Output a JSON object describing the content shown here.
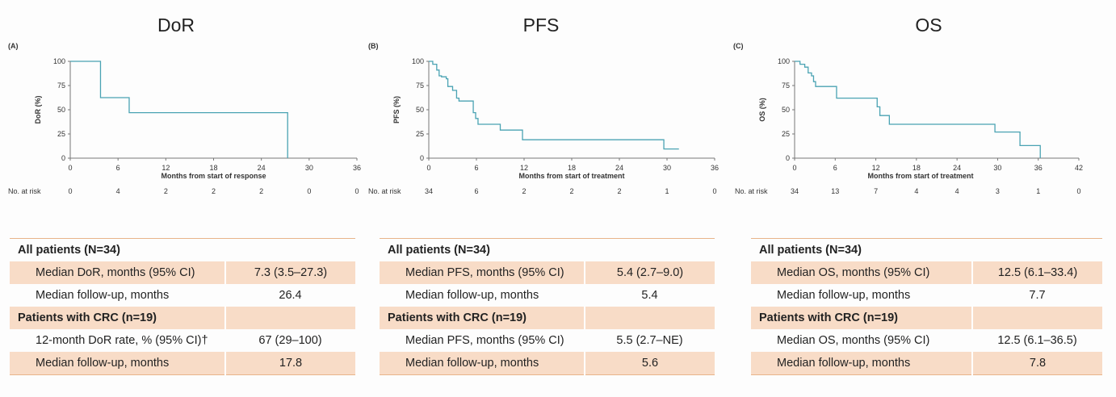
{
  "colors": {
    "curve": "#4aa3b3",
    "axis": "#777",
    "table_shade": "#f8dcc7",
    "table_rule": "#e8b48a"
  },
  "chart_data": [
    {
      "type": "line",
      "panel": "(A)",
      "title": "DoR",
      "xlabel": "Months from start of response",
      "ylabel": "DoR (%)",
      "xlim": [
        0,
        36
      ],
      "ylim": [
        0,
        100
      ],
      "xticks": [
        0,
        6,
        12,
        18,
        24,
        30,
        36
      ],
      "yticks": [
        0,
        25,
        50,
        75,
        100
      ],
      "risk_label": "No. at risk",
      "at_risk": [
        0,
        4,
        2,
        2,
        2,
        0,
        0
      ],
      "series": [
        {
          "x": [
            0,
            3.5,
            3.8,
            7.3,
            7.4,
            27.3,
            27.3
          ],
          "y": [
            100,
            100,
            62.5,
            62.5,
            47,
            47,
            0
          ]
        }
      ]
    },
    {
      "type": "line",
      "panel": "(B)",
      "title": "PFS",
      "xlabel": "Months from start of treatment",
      "ylabel": "PFS (%)",
      "xlim": [
        0,
        36
      ],
      "ylim": [
        0,
        100
      ],
      "xticks": [
        0,
        6,
        12,
        18,
        24,
        30,
        36
      ],
      "yticks": [
        0,
        25,
        50,
        75,
        100
      ],
      "risk_label": "No. at risk",
      "at_risk": [
        34,
        6,
        2,
        2,
        2,
        1,
        0
      ],
      "series": [
        {
          "x": [
            0,
            0.5,
            1,
            1.3,
            1.6,
            2.2,
            2.4,
            3,
            3.5,
            3.8,
            5.3,
            5.6,
            5.9,
            6.2,
            8.9,
            9,
            11.6,
            11.8,
            29.5,
            29.6,
            31.5
          ],
          "y": [
            100,
            97,
            91,
            85,
            84,
            82,
            74,
            70,
            62,
            59,
            59,
            47,
            41,
            35,
            35,
            29,
            29,
            19,
            19,
            9.5,
            9.5
          ]
        }
      ]
    },
    {
      "type": "line",
      "panel": "(C)",
      "title": "OS",
      "xlabel": "Months from start of treatment",
      "ylabel": "OS (%)",
      "xlim": [
        0,
        42
      ],
      "ylim": [
        0,
        100
      ],
      "xticks": [
        0,
        6,
        12,
        18,
        24,
        30,
        36,
        42
      ],
      "yticks": [
        0,
        25,
        50,
        75,
        100
      ],
      "risk_label": "No. at risk",
      "at_risk": [
        34,
        13,
        7,
        4,
        4,
        3,
        1,
        0
      ],
      "series": [
        {
          "x": [
            0,
            0.8,
            1.5,
            2,
            2.5,
            2.8,
            3.1,
            5.8,
            6.2,
            12,
            12.2,
            12.6,
            13.9,
            14,
            29.5,
            29.6,
            33.2,
            33.3,
            36.2,
            36.3
          ],
          "y": [
            100,
            97,
            94,
            88,
            85,
            79,
            74,
            74,
            62,
            62,
            53,
            44,
            44,
            35,
            35,
            27,
            27,
            13,
            13,
            0
          ]
        }
      ]
    }
  ],
  "tables": [
    {
      "rows": [
        {
          "type": "hdr",
          "label": "All patients (N=34)",
          "value": ""
        },
        {
          "type": "row",
          "label": "Median DoR, months (95% CI)",
          "value": "7.3 (3.5–27.3)",
          "shade": true
        },
        {
          "type": "row",
          "label": "Median follow-up, months",
          "value": "26.4",
          "shade": false
        },
        {
          "type": "hdr",
          "label": "Patients with CRC (n=19)",
          "value": "",
          "shade": true
        },
        {
          "type": "row",
          "label": "12-month DoR rate, % (95% CI)†",
          "value": "67 (29–100)",
          "shade": false
        },
        {
          "type": "row",
          "label": "Median follow-up, months",
          "value": "17.8",
          "shade": true
        }
      ]
    },
    {
      "rows": [
        {
          "type": "hdr",
          "label": "All patients (N=34)",
          "value": ""
        },
        {
          "type": "row",
          "label": "Median PFS, months (95% CI)",
          "value": "5.4 (2.7–9.0)",
          "shade": true
        },
        {
          "type": "row",
          "label": "Median follow-up, months",
          "value": "5.4",
          "shade": false
        },
        {
          "type": "hdr",
          "label": "Patients with CRC (n=19)",
          "value": "",
          "shade": true
        },
        {
          "type": "row",
          "label": "Median PFS, months (95% CI)",
          "value": "5.5 (2.7–NE)",
          "shade": false
        },
        {
          "type": "row",
          "label": "Median follow-up, months",
          "value": "5.6",
          "shade": true
        }
      ]
    },
    {
      "rows": [
        {
          "type": "hdr",
          "label": "All patients (N=34)",
          "value": ""
        },
        {
          "type": "row",
          "label": "Median OS, months (95% CI)",
          "value": "12.5 (6.1–33.4)",
          "shade": true
        },
        {
          "type": "row",
          "label": "Median follow-up, months",
          "value": "7.7",
          "shade": false
        },
        {
          "type": "hdr",
          "label": "Patients with CRC (n=19)",
          "value": "",
          "shade": true
        },
        {
          "type": "row",
          "label": "Median OS, months (95% CI)",
          "value": "12.5 (6.1–36.5)",
          "shade": false
        },
        {
          "type": "row",
          "label": "Median follow-up, months",
          "value": "7.8",
          "shade": true
        }
      ]
    }
  ]
}
